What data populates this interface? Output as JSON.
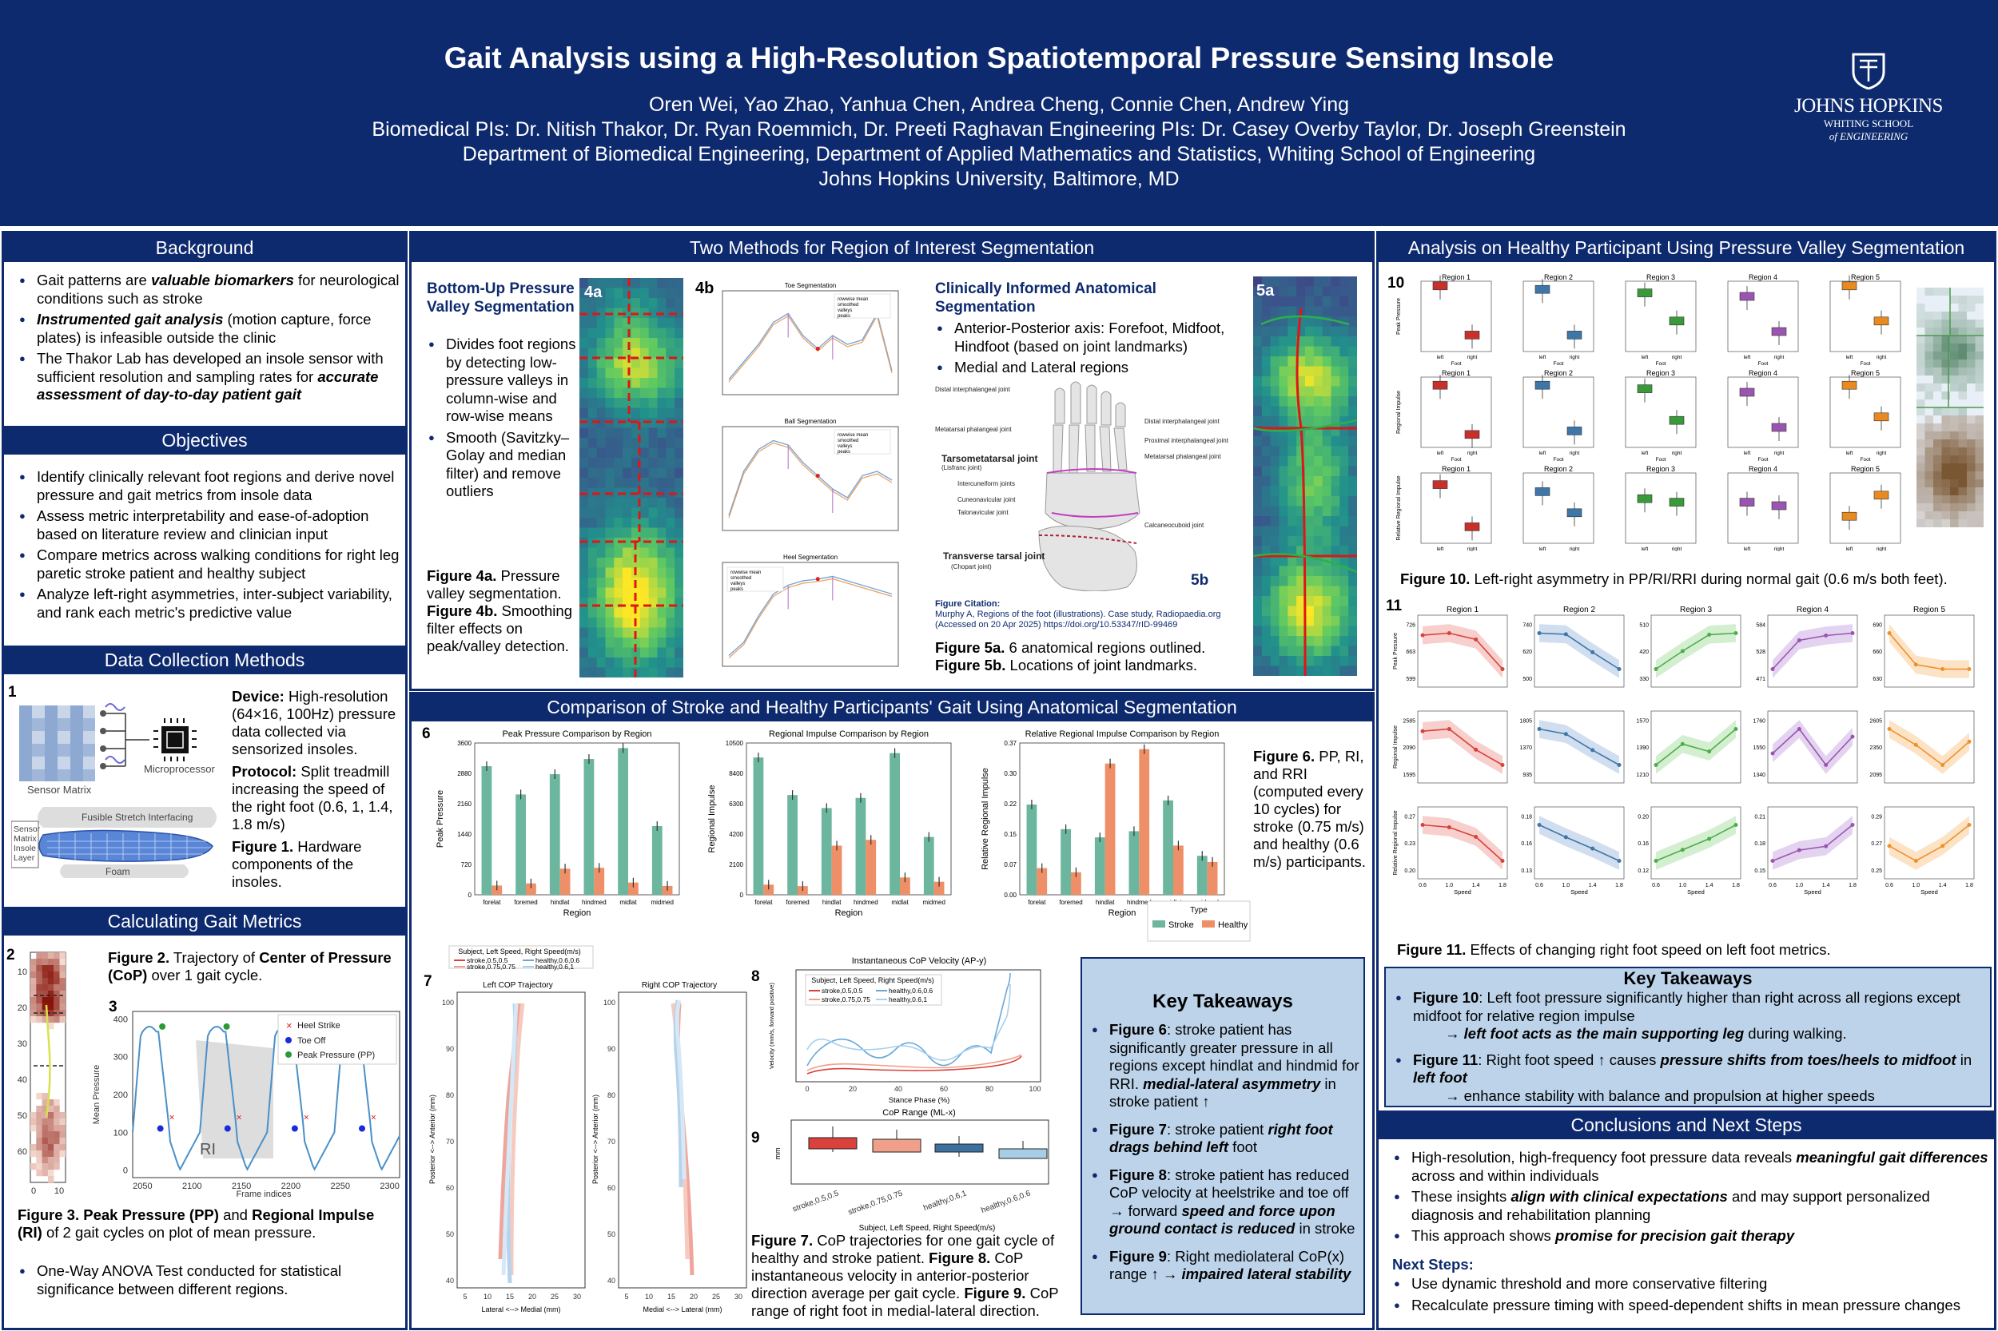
{
  "header": {
    "title": "Gait Analysis using a High-Resolution Spatiotemporal Pressure Sensing Insole",
    "authors": "Oren Wei, Yao Zhao, Yanhua Chen, Andrea Cheng, Connie Chen, Andrew Ying",
    "pis": "Biomedical PIs: Dr. Nitish Thakor, Dr. Ryan Roemmich, Dr. Preeti Raghavan Engineering PIs: Dr. Casey Overby Taylor, Dr. Joseph Greenstein",
    "department": "Department of Biomedical Engineering, Department of Applied Mathematics and Statistics, Whiting School of Engineering",
    "university": "Johns Hopkins University, Baltimore, MD",
    "logo_line1": "JOHNS HOPKINS",
    "logo_line2": "WHITING SCHOOL",
    "logo_line3": "of ENGINEERING"
  },
  "background": {
    "heading": "Background",
    "items": [
      {
        "a": "Gait patterns are ",
        "b": "valuable biomarkers",
        "c": " for neurological conditions such as stroke"
      },
      {
        "a": "",
        "b": "Instrumented gait analysis",
        "c": " (motion capture, force plates) is infeasible outside the clinic"
      },
      {
        "a": "The Thakor Lab has developed an insole sensor with sufficient resolution and sampling rates for ",
        "b": "accurate assessment of day-to-day patient gait",
        "c": ""
      }
    ]
  },
  "objectives": {
    "heading": "Objectives",
    "items": [
      "Identify clinically relevant foot regions and derive novel pressure and gait metrics from insole data",
      "Assess metric interpretability and ease-of-adoption based on literature review and clinician input",
      "Compare metrics across walking conditions for right leg paretic stroke patient and healthy subject",
      "Analyze left-right asymmetries, inter-subject variability, and rank each metric's predictive value"
    ]
  },
  "data_collection": {
    "heading": "Data Collection Methods",
    "fig_num": "1",
    "device_label": "Device:",
    "device_text": " High-resolution (64×16, 100Hz) pressure data collected via sensorized insoles.",
    "protocol_label": "Protocol:",
    "protocol_text": " Split treadmill increasing the speed of the right foot (0.6, 1, 1.4, 1.8 m/s)",
    "fig_label": "Figure 1.",
    "fig_text": " Hardware components of the insoles.",
    "sensor_matrix": "Sensor Matrix",
    "microprocessor": "Microprocessor",
    "fusible": "Fusible Stretch Interfacing",
    "sensor_layer": "Sensor Matrix Insole Layer",
    "foam": "Foam"
  },
  "gait_metrics": {
    "heading": "Calculating Gait Metrics",
    "fig2_num": "2",
    "fig2_label": "Figure 2.",
    "fig2_text_a": " Trajectory of ",
    "fig2_text_b": "Center of Pressure (CoP)",
    "fig2_text_c": " over 1 gait cycle.",
    "fig3_num": "3",
    "fig3_label": "Figure 3.",
    "fig3_text_b1": "Peak Pressure (PP)",
    "fig3_text_mid": " and ",
    "fig3_text_b2": "Regional Impulse (RI)",
    "fig3_text_c": " of 2 gait cycles on plot of mean pressure.",
    "anova": "One-Way ANOVA Test conducted for statistical significance between different regions.",
    "legend_heel": "Heel Strike",
    "legend_toe": "Toe Off",
    "legend_peak": "Peak Pressure (PP)",
    "ri_label": "RI",
    "ylabel": "Mean Pressure",
    "xlabel": "Frame indices",
    "fig2_yticks": [
      "10",
      "20",
      "30",
      "40",
      "50",
      "60"
    ],
    "fig2_xticks": [
      "0",
      "10"
    ],
    "fig3_yticks": [
      "0",
      "100",
      "200",
      "300",
      "400"
    ],
    "fig3_xticks": [
      "2050",
      "2100",
      "2150",
      "2200",
      "2250",
      "2300"
    ]
  },
  "two_methods": {
    "heading": "Two Methods for Region of Interest Segmentation",
    "bu_title": "Bottom-Up Pressure Valley Segmentation",
    "bu_items": [
      "Divides foot regions by detecting low-pressure valleys in column-wise and row-wise means",
      "Smooth (Savitzky–Golay and median filter) and remove outliers"
    ],
    "fig4a_label": "Figure 4a.",
    "fig4a_text": " Pressure valley segmentation.",
    "fig4b_label": "Figure 4b.",
    "fig4b_text": " Smoothing filter effects on peak/valley detection.",
    "tag4a": "4a",
    "tag4b": "4b",
    "tag5a": "5a",
    "tag5b": "5b",
    "seg_titles": [
      "Toe Segmentation",
      "Ball Segmentation",
      "Heel Segmentation"
    ],
    "seg_legend": [
      "rowwise mean",
      "smoothed",
      "valleys",
      "peaks"
    ],
    "ci_title": "Clinically Informed Anatomical Segmentation",
    "ci_items": [
      "Anterior-Posterior axis: Forefoot, Midfoot, Hindfoot (based on joint landmarks)",
      "Medial and Lateral regions"
    ],
    "joints": [
      "Distal interphalangeal joint",
      "Metatarsal phalangeal joint",
      "Tarsometatarsal joint",
      "(Lisfranc joint)",
      "Intercuneiform joints",
      "Cuneonavicular joint",
      "Talonavicular joint",
      "Transverse tarsal joint",
      "(Chopart joint)",
      "Distal interphalangeal joint",
      "Proximal interphalangeal joint",
      "Metatarsal phalangeal joint",
      "Calcaneocuboid joint"
    ],
    "citation_label": "Figure Citation:",
    "citation_text": "Murphy A, Regions of the foot (illustrations). Case study, Radiopaedia.org (Accessed on 20 Apr 2025) https://doi.org/10.53347/rID-99469",
    "fig5a_label": "Figure 5a.",
    "fig5a_text": " 6 anatomical regions outlined.",
    "fig5b_label": "Figure 5b.",
    "fig5b_text": " Locations of joint landmarks."
  },
  "comparison": {
    "heading": "Comparison of Stroke and Healthy Participants' Gait Using Anatomical Segmentation",
    "fig6_num": "6",
    "fig6_label": "Figure 6.",
    "fig6_text": " PP, RI, and RRI (computed every 10 cycles) for stroke (0.75 m/s) and healthy (0.6 m/s) participants.",
    "fig7_num": "7",
    "fig8_num": "8",
    "fig9_num": "9",
    "fig7_label": "Figure 7.",
    "fig7_text": " CoP trajectories for one gait cycle of healthy and stroke patient. ",
    "fig8_label": "Figure 8.",
    "fig8_text": " CoP instantaneous velocity in anterior-posterior direction average per gait cycle. ",
    "fig9_label": "Figure 9.",
    "fig9_text": " CoP range of right foot in medial-lateral direction.",
    "left_cop": "Left COP Trajectory",
    "right_cop": "Right COP Trajectory",
    "cop_xlabel_l": "Lateral <--> Medial (mm)",
    "cop_xlabel_r": "Medial <--> Lateral (mm)",
    "cop_ylabel": "Posterior <--> Anterior (mm)",
    "cop_legend_title": "Subject, Left Speed, Right Speed(m/s)",
    "cop_legend": [
      "stroke,0.5,0.5",
      "stroke,0.75,0.75",
      "healthy,0.6,0.6",
      "healthy,0.6,1"
    ],
    "cop_yticks": [
      "40",
      "50",
      "60",
      "70",
      "80",
      "90",
      "100"
    ],
    "cop_xticks": [
      "5",
      "10",
      "15",
      "20",
      "25",
      "30"
    ],
    "vel_title": "Instantaneous CoP Velocity (AP-y)",
    "vel_xlabel": "Stance Phase (%)",
    "vel_ylabel": "Velocity (mm/s, forward positive)",
    "vel_xticks": [
      "0",
      "20",
      "40",
      "60",
      "80",
      "100"
    ],
    "range_title": "CoP Range (ML-x)",
    "range_xlabel": "Subject, Left Speed, Right Speed(m/s)",
    "range_ylabel": "mm",
    "range_cats": [
      "stroke,0.5,0.5",
      "stroke,0.75,0.75",
      "healthy,0.6,1",
      "healthy,0.6,0.6"
    ],
    "type_label": "Type",
    "type_stroke": "Stroke",
    "type_healthy": "Healthy",
    "region_label": "Region"
  },
  "key1": {
    "heading": "Key Takeaways",
    "items": [
      {
        "fig": "Figure 6",
        "t1": ": stroke patient has significantly greater pressure in all regions except hindlat and hindmid for RRI. ",
        "b": "medial-lateral asymmetry",
        "t2": " in stroke patient ↑"
      },
      {
        "fig": "Figure 7",
        "t1": ": stroke patient ",
        "b": "right foot drags behind left",
        "t2": " foot"
      },
      {
        "fig": "Figure 8",
        "t1": ": stroke patient has reduced CoP velocity at heelstrike and toe off → forward ",
        "b": "speed and force upon ground contact is reduced",
        "t2": " in stroke"
      },
      {
        "fig": "Figure 9",
        "t1": ": Right mediolateral CoP(x) range ↑ → ",
        "b": "impaired lateral stability",
        "t2": ""
      }
    ]
  },
  "healthy": {
    "heading": "Analysis on Healthy Participant Using Pressure Valley Segmentation",
    "fig10_num": "10",
    "fig11_num": "11",
    "fig10_label": "Figure 10.",
    "fig10_text": " Left-right asymmetry in PP/RI/RRI during normal gait (0.6 m/s both feet).",
    "fig11_label": "Figure 11.",
    "fig11_text": " Effects of changing right foot speed on left foot metrics.",
    "regions": [
      "Region 1",
      "Region 2",
      "Region 3",
      "Region 4",
      "Region 5"
    ],
    "row_labels": [
      "Peak Pressure",
      "Regional Impulse",
      "Relative Regional Impulse"
    ],
    "foot_label": "Foot",
    "speed_label": "Speed",
    "lr": [
      "left",
      "right"
    ],
    "speed_ticks": [
      "0.6",
      "1.0",
      "1.4",
      "1.8"
    ]
  },
  "key2": {
    "heading": "Key Takeaways",
    "items": [
      {
        "fig": "Figure 10",
        "t1": ": Left foot pressure significantly higher than right across all regions except midfoot for relative region impulse",
        "arrow": "→ ",
        "b": "left foot acts as the main supporting leg",
        "t2": " during walking."
      },
      {
        "fig": "Figure 11",
        "t1": ": Right foot speed ↑ causes ",
        "b": "pressure shifts from toes/heels to midfoot",
        "t1b": " in ",
        "b2": "left foot",
        "arrow": "→ enhance stability with balance and propulsion at higher speeds"
      }
    ]
  },
  "conclusions": {
    "heading": "Conclusions and Next Steps",
    "items": [
      {
        "a": "High-resolution, high-frequency foot pressure data reveals ",
        "b": "meaningful gait differences",
        "c": " across and within individuals"
      },
      {
        "a": "These insights ",
        "b": "align with clinical expectations",
        "c": " and may support personalized diagnosis and rehabilitation planning"
      },
      {
        "a": "This approach shows ",
        "b": "promise for precision gait therapy",
        "c": ""
      }
    ],
    "next_heading": "Next Steps:",
    "next_items": [
      "Use dynamic threshold and more conservative filtering",
      "Recalculate pressure timing with speed-dependent shifts in mean pressure changes"
    ]
  },
  "chart_data": [
    {
      "type": "bar",
      "title": "Peak Pressure Comparison by Region",
      "xlabel": "Region",
      "ylabel": "Peak Pressure",
      "categories": [
        "forelat",
        "foremed",
        "hindlat",
        "hindmed",
        "midlat",
        "midmed"
      ],
      "ylim": [
        0,
        3600
      ],
      "series": [
        {
          "name": "Stroke",
          "values": [
            3050,
            2380,
            2860,
            3220,
            3480,
            1630
          ]
        },
        {
          "name": "Healthy",
          "values": [
            220,
            270,
            620,
            640,
            290,
            210
          ]
        }
      ]
    },
    {
      "type": "bar",
      "title": "Regional Impulse Comparison by Region",
      "xlabel": "Region",
      "ylabel": "Regional Impulse",
      "categories": [
        "forelat",
        "foremed",
        "hindlat",
        "hindmed",
        "midlat",
        "midmed"
      ],
      "ylim": [
        0,
        10500
      ],
      "series": [
        {
          "name": "Stroke",
          "values": [
            9500,
            6900,
            6000,
            6700,
            9800,
            4000
          ]
        },
        {
          "name": "Healthy",
          "values": [
            700,
            600,
            3400,
            3800,
            1200,
            900
          ]
        }
      ]
    },
    {
      "type": "bar",
      "title": "Relative Regional Impulse Comparison by Region",
      "xlabel": "Region",
      "ylabel": "Relative Regional Impulse",
      "categories": [
        "forelat",
        "foremed",
        "hindlat",
        "hindmed",
        "midlat",
        "midmed"
      ],
      "ylim": [
        0,
        0.37
      ],
      "series": [
        {
          "name": "Stroke",
          "values": [
            0.22,
            0.16,
            0.14,
            0.155,
            0.23,
            0.095
          ]
        },
        {
          "name": "Healthy",
          "values": [
            0.065,
            0.055,
            0.32,
            0.355,
            0.12,
            0.08
          ]
        }
      ]
    },
    {
      "type": "line",
      "title": "Figure 11",
      "xlabel": "Speed",
      "x": [
        0.6,
        1.0,
        1.4,
        1.8
      ],
      "series": [
        {
          "name": "Region 1",
          "pp": [
            700,
            705,
            690,
            620
          ],
          "ri": [
            2380,
            2420,
            2040,
            1760
          ],
          "rri": [
            0.255,
            0.252,
            0.24,
            0.21
          ]
        },
        {
          "name": "Region 2",
          "pp": [
            700,
            695,
            615,
            540
          ],
          "ri": [
            1660,
            1580,
            1320,
            1080
          ],
          "rri": [
            0.175,
            0.163,
            0.152,
            0.14
          ]
        },
        {
          "name": "Region 3",
          "pp": [
            360,
            420,
            475,
            480
          ],
          "ri": [
            1270,
            1410,
            1360,
            1510
          ],
          "rri": [
            0.135,
            0.15,
            0.165,
            0.184
          ]
        },
        {
          "name": "Region 4",
          "pp": [
            490,
            550,
            560,
            565
          ],
          "ri": [
            1500,
            1690,
            1410,
            1630
          ],
          "rri": [
            0.163,
            0.174,
            0.178,
            0.2
          ]
        },
        {
          "name": "Region 5",
          "pp": [
            680,
            645,
            640,
            640
          ],
          "ri": [
            2520,
            2370,
            2180,
            2400
          ],
          "rri": [
            0.268,
            0.256,
            0.268,
            0.285
          ]
        }
      ]
    }
  ]
}
